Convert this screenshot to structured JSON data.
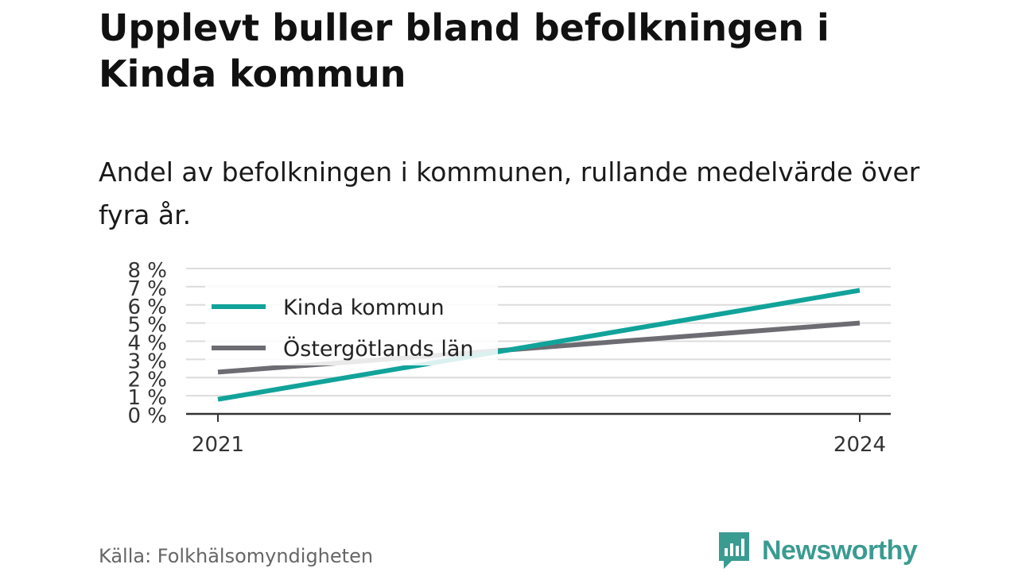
{
  "header": {
    "title": "Upplevt buller bland befolkningen i Kinda kommun",
    "subtitle": "Andel av befolkningen i kommunen, rullande medelvärde över fyra år."
  },
  "footer": {
    "source": "Källa: Folkhälsomyndigheten",
    "brand": "Newsworthy",
    "brand_color": "#3a9b91"
  },
  "chart_data": {
    "type": "line",
    "x": [
      2021,
      2024
    ],
    "x_tick_labels": [
      "2021",
      "2024"
    ],
    "y_tick_labels": [
      "0 %",
      "1 %",
      "2 %",
      "3 %",
      "4 %",
      "5 %",
      "6 %",
      "7 %",
      "8 %"
    ],
    "ylim": [
      0,
      8
    ],
    "grid": true,
    "legend_position": "top-left",
    "series": [
      {
        "name": "Kinda kommun",
        "values": [
          0.8,
          6.8
        ],
        "color": "#11a39a"
      },
      {
        "name": "Östergötlands län",
        "values": [
          2.3,
          5.0
        ],
        "color": "#6d6c72"
      }
    ]
  }
}
